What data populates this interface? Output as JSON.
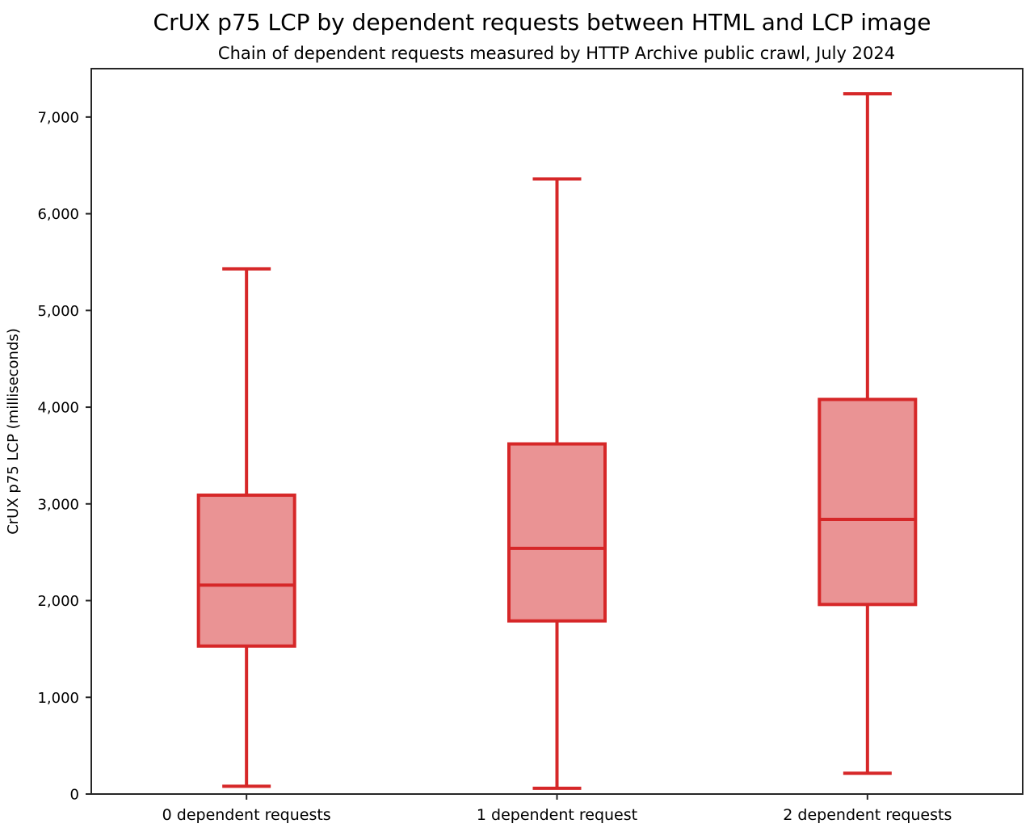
{
  "title": "CrUX p75 LCP by dependent requests between HTML and LCP image",
  "subtitle": "Chain of dependent requests measured by HTTP Archive public crawl, July 2024",
  "chart_data": {
    "type": "boxplot",
    "title": "CrUX p75 LCP by dependent requests between HTML and LCP image",
    "subtitle": "Chain of dependent requests measured by HTTP Archive public crawl, July 2024",
    "xlabel": "",
    "ylabel": "CrUX p75 LCP (milliseconds)",
    "ylim": [
      0,
      7500
    ],
    "yticks": [
      0,
      1000,
      2000,
      3000,
      4000,
      5000,
      6000,
      7000
    ],
    "ytick_labels": [
      "0",
      "1,000",
      "2,000",
      "3,000",
      "4,000",
      "5,000",
      "6,000",
      "7,000"
    ],
    "grid": false,
    "legend": null,
    "categories": [
      "0 dependent requests",
      "1 dependent request",
      "2 dependent requests"
    ],
    "boxes": [
      {
        "category": "0 dependent requests",
        "whisker_min": 80,
        "q1": 1530,
        "median": 2160,
        "q3": 3090,
        "whisker_max": 5430
      },
      {
        "category": "1 dependent request",
        "whisker_min": 60,
        "q1": 1790,
        "median": 2540,
        "q3": 3620,
        "whisker_max": 6360
      },
      {
        "category": "2 dependent requests",
        "whisker_min": 215,
        "q1": 1960,
        "median": 2840,
        "q3": 4080,
        "whisker_max": 7240
      }
    ],
    "colors": {
      "box_line": "#d62728",
      "box_fill": "#ea9394",
      "axis": "#262626",
      "text": "#000000"
    }
  }
}
